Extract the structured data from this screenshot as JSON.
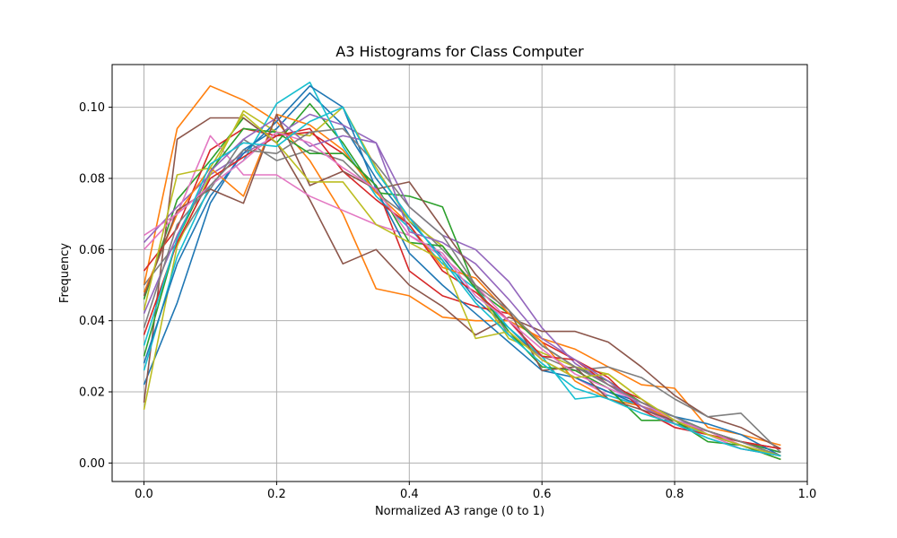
{
  "chart_data": {
    "type": "line",
    "title": "A3 Histograms for Class Computer",
    "xlabel": "Normalized A3 range (0 to 1)",
    "ylabel": "Frequency",
    "xlim": [
      -0.048,
      1.0
    ],
    "ylim": [
      -0.0052,
      0.112
    ],
    "xticks": [
      0.0,
      0.2,
      0.4,
      0.6,
      0.8,
      1.0
    ],
    "xtick_labels": [
      "0.0",
      "0.2",
      "0.4",
      "0.6",
      "0.8",
      "1.0"
    ],
    "yticks": [
      0.0,
      0.02,
      0.04,
      0.06,
      0.08,
      0.1
    ],
    "ytick_labels": [
      "0.00",
      "0.02",
      "0.04",
      "0.06",
      "0.08",
      "0.10"
    ],
    "grid": true,
    "x": [
      0.0,
      0.05,
      0.1,
      0.15,
      0.2,
      0.25,
      0.3,
      0.35,
      0.4,
      0.45,
      0.5,
      0.55,
      0.6,
      0.65,
      0.7,
      0.75,
      0.8,
      0.85,
      0.9,
      0.96
    ],
    "series": [
      {
        "color": "#1f77b4",
        "values": [
          0.022,
          0.045,
          0.073,
          0.088,
          0.094,
          0.104,
          0.095,
          0.08,
          0.068,
          0.058,
          0.046,
          0.038,
          0.029,
          0.024,
          0.02,
          0.016,
          0.012,
          0.009,
          0.006,
          0.003
        ]
      },
      {
        "color": "#ff7f0e",
        "values": [
          0.05,
          0.094,
          0.106,
          0.102,
          0.096,
          0.085,
          0.07,
          0.049,
          0.047,
          0.041,
          0.04,
          0.04,
          0.035,
          0.032,
          0.027,
          0.022,
          0.021,
          0.01,
          0.008,
          0.005
        ]
      },
      {
        "color": "#2ca02c",
        "values": [
          0.046,
          0.074,
          0.085,
          0.097,
          0.09,
          0.101,
          0.09,
          0.076,
          0.075,
          0.072,
          0.049,
          0.042,
          0.033,
          0.027,
          0.023,
          0.017,
          0.013,
          0.009,
          0.006,
          0.003
        ]
      },
      {
        "color": "#d62728",
        "values": [
          0.054,
          0.066,
          0.088,
          0.094,
          0.092,
          0.093,
          0.087,
          0.078,
          0.054,
          0.047,
          0.044,
          0.042,
          0.034,
          0.029,
          0.022,
          0.018,
          0.011,
          0.009,
          0.006,
          0.004
        ]
      },
      {
        "color": "#9467bd",
        "values": [
          0.062,
          0.072,
          0.081,
          0.087,
          0.092,
          0.098,
          0.095,
          0.09,
          0.072,
          0.064,
          0.06,
          0.051,
          0.038,
          0.028,
          0.022,
          0.016,
          0.013,
          0.008,
          0.005,
          0.002
        ]
      },
      {
        "color": "#8c564b",
        "values": [
          0.017,
          0.091,
          0.097,
          0.097,
          0.09,
          0.074,
          0.056,
          0.06,
          0.05,
          0.044,
          0.036,
          0.041,
          0.037,
          0.037,
          0.034,
          0.027,
          0.019,
          0.013,
          0.01,
          0.004
        ]
      },
      {
        "color": "#e377c2",
        "values": [
          0.06,
          0.07,
          0.092,
          0.081,
          0.081,
          0.075,
          0.071,
          0.067,
          0.064,
          0.058,
          0.05,
          0.04,
          0.029,
          0.024,
          0.019,
          0.016,
          0.01,
          0.008,
          0.004,
          0.002
        ]
      },
      {
        "color": "#7f7f7f",
        "values": [
          0.05,
          0.062,
          0.077,
          0.091,
          0.085,
          0.088,
          0.085,
          0.076,
          0.069,
          0.06,
          0.05,
          0.036,
          0.03,
          0.026,
          0.027,
          0.024,
          0.018,
          0.013,
          0.014,
          0.003
        ]
      },
      {
        "color": "#bcbd22",
        "values": [
          0.015,
          0.061,
          0.081,
          0.099,
          0.093,
          0.092,
          0.1,
          0.083,
          0.068,
          0.061,
          0.049,
          0.035,
          0.031,
          0.027,
          0.025,
          0.018,
          0.012,
          0.009,
          0.005,
          0.002
        ]
      },
      {
        "color": "#17becf",
        "values": [
          0.026,
          0.058,
          0.078,
          0.085,
          0.101,
          0.107,
          0.089,
          0.075,
          0.066,
          0.056,
          0.049,
          0.038,
          0.03,
          0.018,
          0.019,
          0.016,
          0.011,
          0.008,
          0.005,
          0.002
        ]
      },
      {
        "color": "#1f77b4",
        "values": [
          0.028,
          0.056,
          0.075,
          0.087,
          0.096,
          0.106,
          0.1,
          0.077,
          0.059,
          0.05,
          0.042,
          0.034,
          0.026,
          0.024,
          0.02,
          0.017,
          0.013,
          0.011,
          0.008,
          0.002
        ]
      },
      {
        "color": "#ff7f0e",
        "values": [
          0.048,
          0.07,
          0.083,
          0.075,
          0.098,
          0.095,
          0.088,
          0.076,
          0.067,
          0.055,
          0.052,
          0.042,
          0.034,
          0.023,
          0.018,
          0.016,
          0.012,
          0.008,
          0.005,
          0.001
        ]
      },
      {
        "color": "#2ca02c",
        "values": [
          0.03,
          0.063,
          0.082,
          0.094,
          0.093,
          0.087,
          0.087,
          0.078,
          0.062,
          0.061,
          0.049,
          0.037,
          0.027,
          0.026,
          0.021,
          0.012,
          0.012,
          0.006,
          0.005,
          0.001
        ]
      },
      {
        "color": "#d62728",
        "values": [
          0.036,
          0.062,
          0.08,
          0.086,
          0.092,
          0.094,
          0.082,
          0.074,
          0.067,
          0.054,
          0.048,
          0.04,
          0.03,
          0.029,
          0.024,
          0.015,
          0.01,
          0.008,
          0.006,
          0.004
        ]
      },
      {
        "color": "#9467bd",
        "values": [
          0.042,
          0.064,
          0.082,
          0.091,
          0.097,
          0.089,
          0.092,
          0.09,
          0.065,
          0.062,
          0.056,
          0.046,
          0.035,
          0.029,
          0.023,
          0.016,
          0.011,
          0.007,
          0.004,
          0.002
        ]
      },
      {
        "color": "#8c564b",
        "values": [
          0.047,
          0.071,
          0.077,
          0.073,
          0.098,
          0.078,
          0.082,
          0.077,
          0.079,
          0.066,
          0.053,
          0.043,
          0.026,
          0.027,
          0.018,
          0.015,
          0.012,
          0.009,
          0.006,
          0.002
        ]
      },
      {
        "color": "#e377c2",
        "values": [
          0.064,
          0.07,
          0.078,
          0.085,
          0.093,
          0.09,
          0.083,
          0.077,
          0.064,
          0.059,
          0.047,
          0.04,
          0.032,
          0.025,
          0.021,
          0.017,
          0.012,
          0.009,
          0.005,
          0.002
        ]
      },
      {
        "color": "#7f7f7f",
        "values": [
          0.038,
          0.067,
          0.078,
          0.088,
          0.087,
          0.093,
          0.094,
          0.084,
          0.072,
          0.064,
          0.05,
          0.043,
          0.033,
          0.027,
          0.022,
          0.017,
          0.013,
          0.009,
          0.006,
          0.002
        ]
      },
      {
        "color": "#bcbd22",
        "values": [
          0.043,
          0.081,
          0.083,
          0.098,
          0.09,
          0.079,
          0.079,
          0.067,
          0.062,
          0.057,
          0.035,
          0.037,
          0.029,
          0.024,
          0.025,
          0.018,
          0.012,
          0.008,
          0.005,
          0.002
        ]
      },
      {
        "color": "#17becf",
        "values": [
          0.033,
          0.063,
          0.084,
          0.09,
          0.089,
          0.096,
          0.1,
          0.082,
          0.069,
          0.057,
          0.045,
          0.036,
          0.028,
          0.021,
          0.018,
          0.014,
          0.011,
          0.007,
          0.004,
          0.002
        ]
      }
    ]
  }
}
